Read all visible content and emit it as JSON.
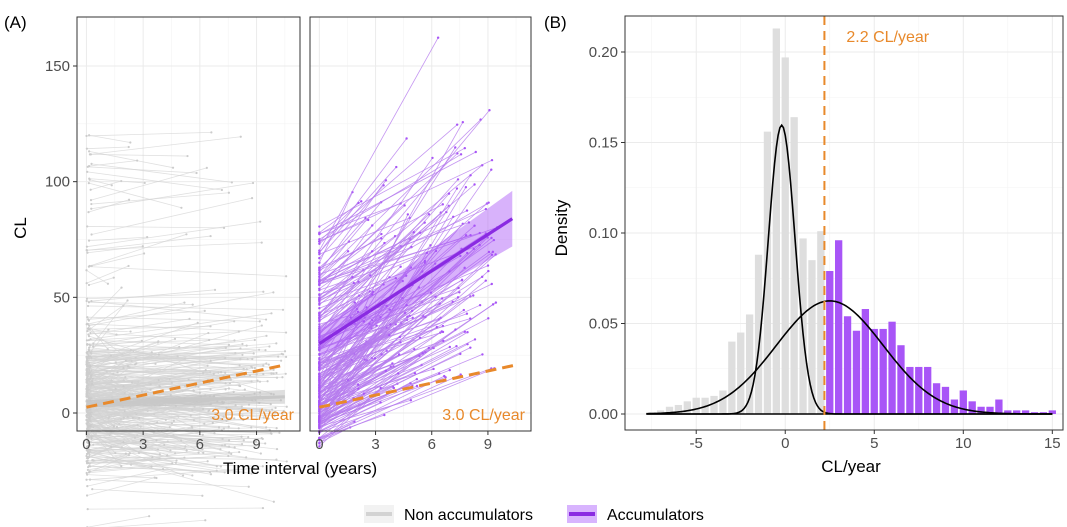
{
  "colors": {
    "non_accumulators": "#d3d3d3",
    "accumulators": "#a855f7",
    "accumulators_line": "#8a2be2",
    "threshold": "#e8892b",
    "panel_bg": "#ffffff",
    "grid": "#ebebeb"
  },
  "chart_data": [
    {
      "panel": "(A)",
      "type": "line",
      "subtype": "spaghetti plot with linear regression fit, two facets",
      "xlabel": "Time interval (years)",
      "ylabel": "CL",
      "xticks": [
        "0",
        "3",
        "6",
        "9"
      ],
      "yticks": [
        "0",
        "50",
        "100",
        "150"
      ],
      "xlim": [
        -0.5,
        11.3
      ],
      "ylim": [
        -37,
        177
      ],
      "grid": true,
      "facets": [
        {
          "group": "Non accumulators",
          "annotation": "3.0 CL/year",
          "threshold_line": {
            "slope": 3.0,
            "intercept": 2.5,
            "x": [
              0,
              10.5
            ]
          },
          "fit_line": {
            "x": [
              0,
              10.5
            ],
            "y": [
              4,
              7
            ],
            "ci_halfwidth_end": 3
          }
        },
        {
          "group": "Accumulators",
          "annotation": "3.0 CL/year",
          "threshold_line": {
            "slope": 3.0,
            "intercept": 2.5,
            "x": [
              0,
              10.5
            ]
          },
          "fit_line": {
            "x": [
              0,
              10.3
            ],
            "y": [
              30,
              84
            ],
            "ci_halfwidth_start": 6,
            "ci_halfwidth_end": 12
          }
        }
      ]
    },
    {
      "panel": "(B)",
      "type": "bar",
      "subtype": "histogram with two normal density curves",
      "xlabel": "CL/year",
      "ylabel": "Density",
      "xticks": [
        "-5",
        "0",
        "5",
        "10",
        "15"
      ],
      "yticks": [
        "0.00",
        "0.05",
        "0.10",
        "0.15",
        "0.20"
      ],
      "xlim": [
        -9,
        15.6
      ],
      "ylim": [
        -0.01,
        0.226
      ],
      "grid": true,
      "threshold": {
        "x": 2.2,
        "label": "2.2 CL/year"
      },
      "bin_width": 0.5,
      "bins": [
        {
          "x": -7.5,
          "y": 0.001,
          "group": "Non accumulators"
        },
        {
          "x": -7.0,
          "y": 0.002,
          "group": "Non accumulators"
        },
        {
          "x": -6.5,
          "y": 0.004,
          "group": "Non accumulators"
        },
        {
          "x": -6.0,
          "y": 0.005,
          "group": "Non accumulators"
        },
        {
          "x": -5.5,
          "y": 0.007,
          "group": "Non accumulators"
        },
        {
          "x": -5.0,
          "y": 0.009,
          "group": "Non accumulators"
        },
        {
          "x": -4.5,
          "y": 0.009,
          "group": "Non accumulators"
        },
        {
          "x": -4.0,
          "y": 0.01,
          "group": "Non accumulators"
        },
        {
          "x": -3.5,
          "y": 0.013,
          "group": "Non accumulators"
        },
        {
          "x": -3.0,
          "y": 0.04,
          "group": "Non accumulators"
        },
        {
          "x": -2.5,
          "y": 0.045,
          "group": "Non accumulators"
        },
        {
          "x": -2.0,
          "y": 0.055,
          "group": "Non accumulators"
        },
        {
          "x": -1.5,
          "y": 0.088,
          "group": "Non accumulators"
        },
        {
          "x": -1.0,
          "y": 0.156,
          "group": "Non accumulators"
        },
        {
          "x": -0.5,
          "y": 0.213,
          "group": "Non accumulators"
        },
        {
          "x": 0.0,
          "y": 0.197,
          "group": "Non accumulators"
        },
        {
          "x": 0.5,
          "y": 0.164,
          "group": "Non accumulators"
        },
        {
          "x": 1.0,
          "y": 0.097,
          "group": "Non accumulators"
        },
        {
          "x": 1.5,
          "y": 0.085,
          "group": "Non accumulators"
        },
        {
          "x": 2.0,
          "y": 0.101,
          "group": "Non accumulators"
        },
        {
          "x": 2.5,
          "y": 0.079,
          "group": "Accumulators"
        },
        {
          "x": 3.0,
          "y": 0.096,
          "group": "Accumulators"
        },
        {
          "x": 3.5,
          "y": 0.054,
          "group": "Accumulators"
        },
        {
          "x": 4.0,
          "y": 0.046,
          "group": "Accumulators"
        },
        {
          "x": 4.5,
          "y": 0.058,
          "group": "Accumulators"
        },
        {
          "x": 5.0,
          "y": 0.047,
          "group": "Accumulators"
        },
        {
          "x": 5.5,
          "y": 0.047,
          "group": "Accumulators"
        },
        {
          "x": 6.0,
          "y": 0.051,
          "group": "Accumulators"
        },
        {
          "x": 6.5,
          "y": 0.038,
          "group": "Accumulators"
        },
        {
          "x": 7.0,
          "y": 0.026,
          "group": "Accumulators"
        },
        {
          "x": 7.5,
          "y": 0.026,
          "group": "Accumulators"
        },
        {
          "x": 8.0,
          "y": 0.026,
          "group": "Accumulators"
        },
        {
          "x": 8.5,
          "y": 0.017,
          "group": "Accumulators"
        },
        {
          "x": 9.0,
          "y": 0.015,
          "group": "Accumulators"
        },
        {
          "x": 9.5,
          "y": 0.008,
          "group": "Accumulators"
        },
        {
          "x": 10.0,
          "y": 0.013,
          "group": "Accumulators"
        },
        {
          "x": 10.5,
          "y": 0.007,
          "group": "Accumulators"
        },
        {
          "x": 11.0,
          "y": 0.004,
          "group": "Accumulators"
        },
        {
          "x": 11.5,
          "y": 0.004,
          "group": "Accumulators"
        },
        {
          "x": 12.0,
          "y": 0.008,
          "group": "Accumulators"
        },
        {
          "x": 12.5,
          "y": 0.002,
          "group": "Accumulators"
        },
        {
          "x": 13.0,
          "y": 0.002,
          "group": "Accumulators"
        },
        {
          "x": 13.5,
          "y": 0.002,
          "group": "Accumulators"
        },
        {
          "x": 14.0,
          "y": 0.001,
          "group": "Accumulators"
        },
        {
          "x": 14.5,
          "y": 0.001,
          "group": "Accumulators"
        },
        {
          "x": 15.0,
          "y": 0.002,
          "group": "Accumulators"
        }
      ],
      "curves": [
        {
          "type": "normal",
          "mean": -0.2,
          "sd": 0.75,
          "weight": 0.3,
          "x_range": [
            -7.8,
            15
          ]
        },
        {
          "type": "normal",
          "mean": 2.5,
          "sd": 3.0,
          "weight": 0.47,
          "x_range": [
            -7.8,
            15
          ]
        }
      ]
    }
  ],
  "legend": {
    "position": "bottom",
    "items": [
      {
        "label": "Non accumulators",
        "color": "#d3d3d3"
      },
      {
        "label": "Accumulators",
        "color": "#8a2be2"
      }
    ]
  }
}
